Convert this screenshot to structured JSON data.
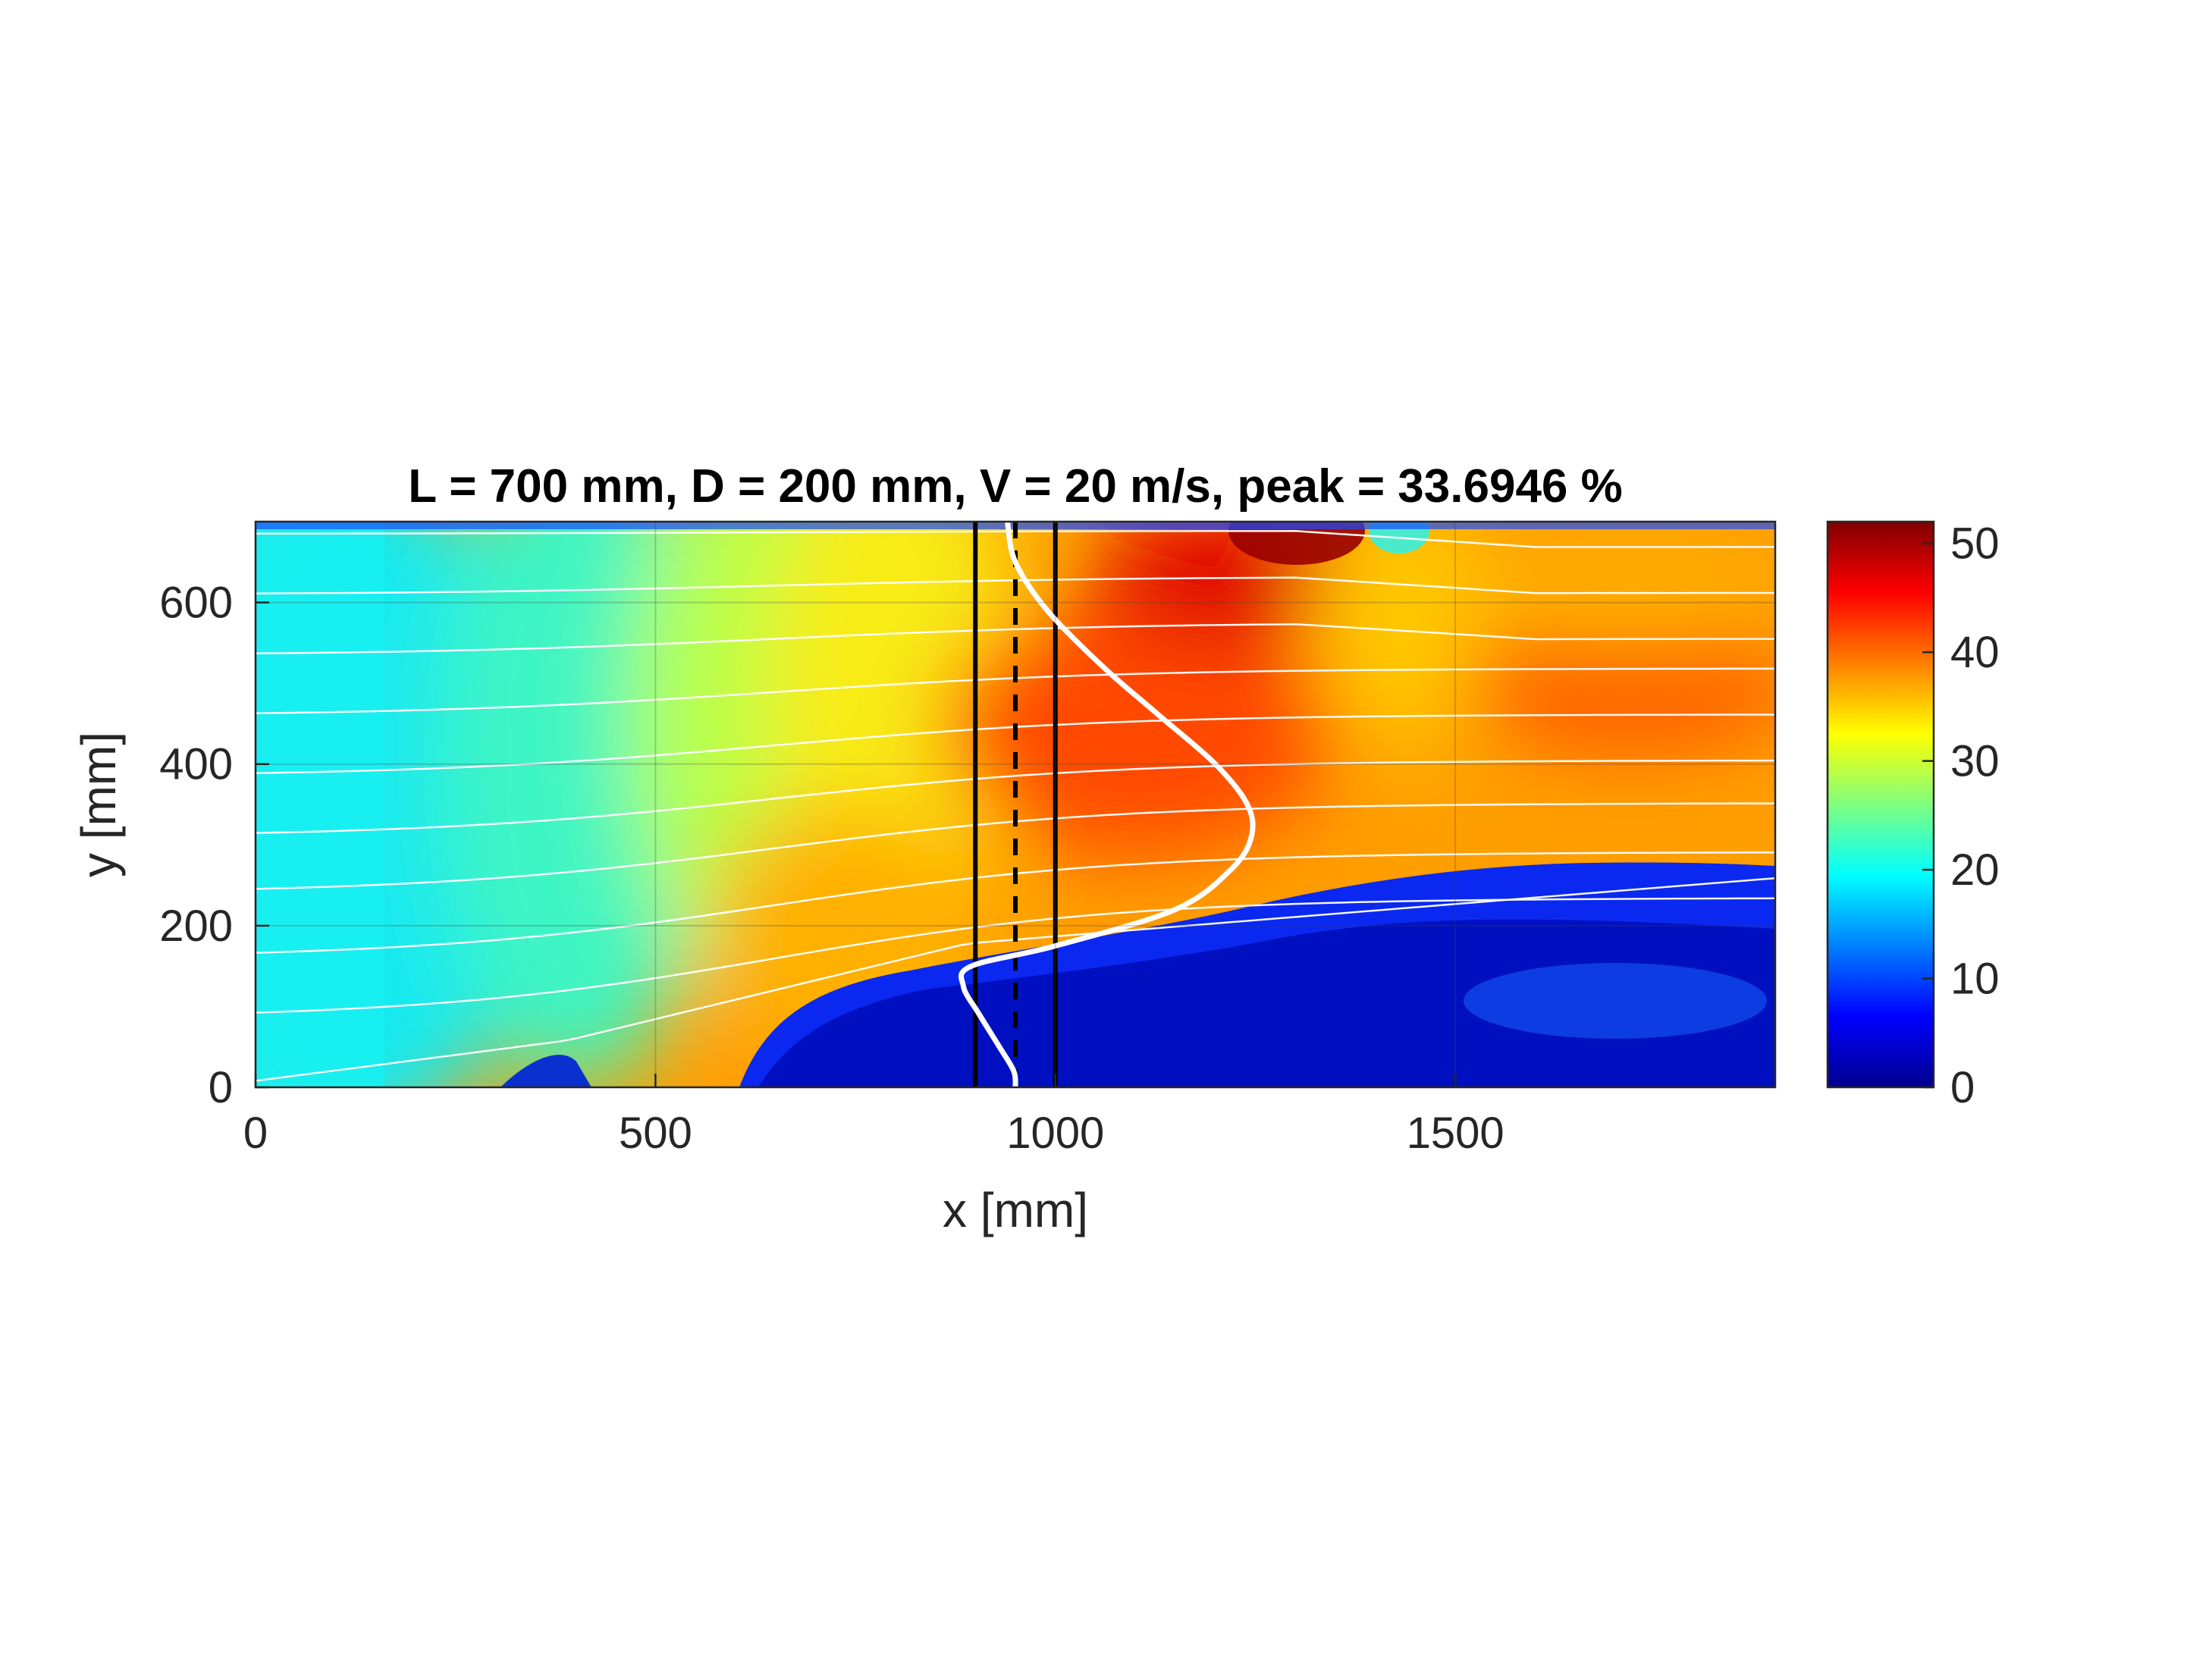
{
  "chart_data": {
    "type": "heatmap",
    "title": "L = 700 mm, D = 200 mm, V = 20 m/s, peak = 33.6946 %",
    "xlabel": "x [mm]",
    "ylabel": "y [mm]",
    "xlim": [
      0,
      1900
    ],
    "ylim": [
      0,
      700
    ],
    "xticks": [
      0,
      500,
      1000,
      1500
    ],
    "yticks": [
      0,
      200,
      400,
      600
    ],
    "grid": true,
    "colormap": "jet",
    "colorbar": {
      "clim": [
        0,
        52
      ],
      "ticks": [
        0,
        10,
        20,
        30,
        40,
        50
      ]
    },
    "field_samples": [
      {
        "x": 100,
        "y": 350,
        "value": 19
      },
      {
        "x": 450,
        "y": 350,
        "value": 23
      },
      {
        "x": 700,
        "y": 500,
        "value": 28
      },
      {
        "x": 800,
        "y": 300,
        "value": 36
      },
      {
        "x": 1100,
        "y": 400,
        "value": 41
      },
      {
        "x": 1250,
        "y": 580,
        "value": 44
      },
      {
        "x": 1300,
        "y": 690,
        "value": 51
      },
      {
        "x": 1420,
        "y": 550,
        "value": 34
      },
      {
        "x": 1700,
        "y": 480,
        "value": 39
      },
      {
        "x": 1700,
        "y": 600,
        "value": 33
      },
      {
        "x": 900,
        "y": 60,
        "value": 2
      },
      {
        "x": 1200,
        "y": 120,
        "value": 3
      },
      {
        "x": 1700,
        "y": 100,
        "value": 8
      }
    ],
    "profile_line": {
      "x": [
        950,
        948,
        930,
        905,
        885,
        895,
        1000,
        1150,
        1220,
        1245,
        1240,
        1200,
        1130,
        1060,
        990,
        950,
        940
      ],
      "y": [
        0,
        20,
        50,
        90,
        125,
        150,
        175,
        220,
        270,
        310,
        350,
        400,
        460,
        520,
        590,
        650,
        700
      ]
    },
    "vertical_lines": [
      {
        "x": 900,
        "style": "solid"
      },
      {
        "x": 950,
        "style": "dashed"
      },
      {
        "x": 1000,
        "style": "solid"
      }
    ],
    "streamlines_start_y": [
      8,
      85,
      160,
      240,
      310,
      385,
      460,
      535,
      610,
      685
    ]
  }
}
